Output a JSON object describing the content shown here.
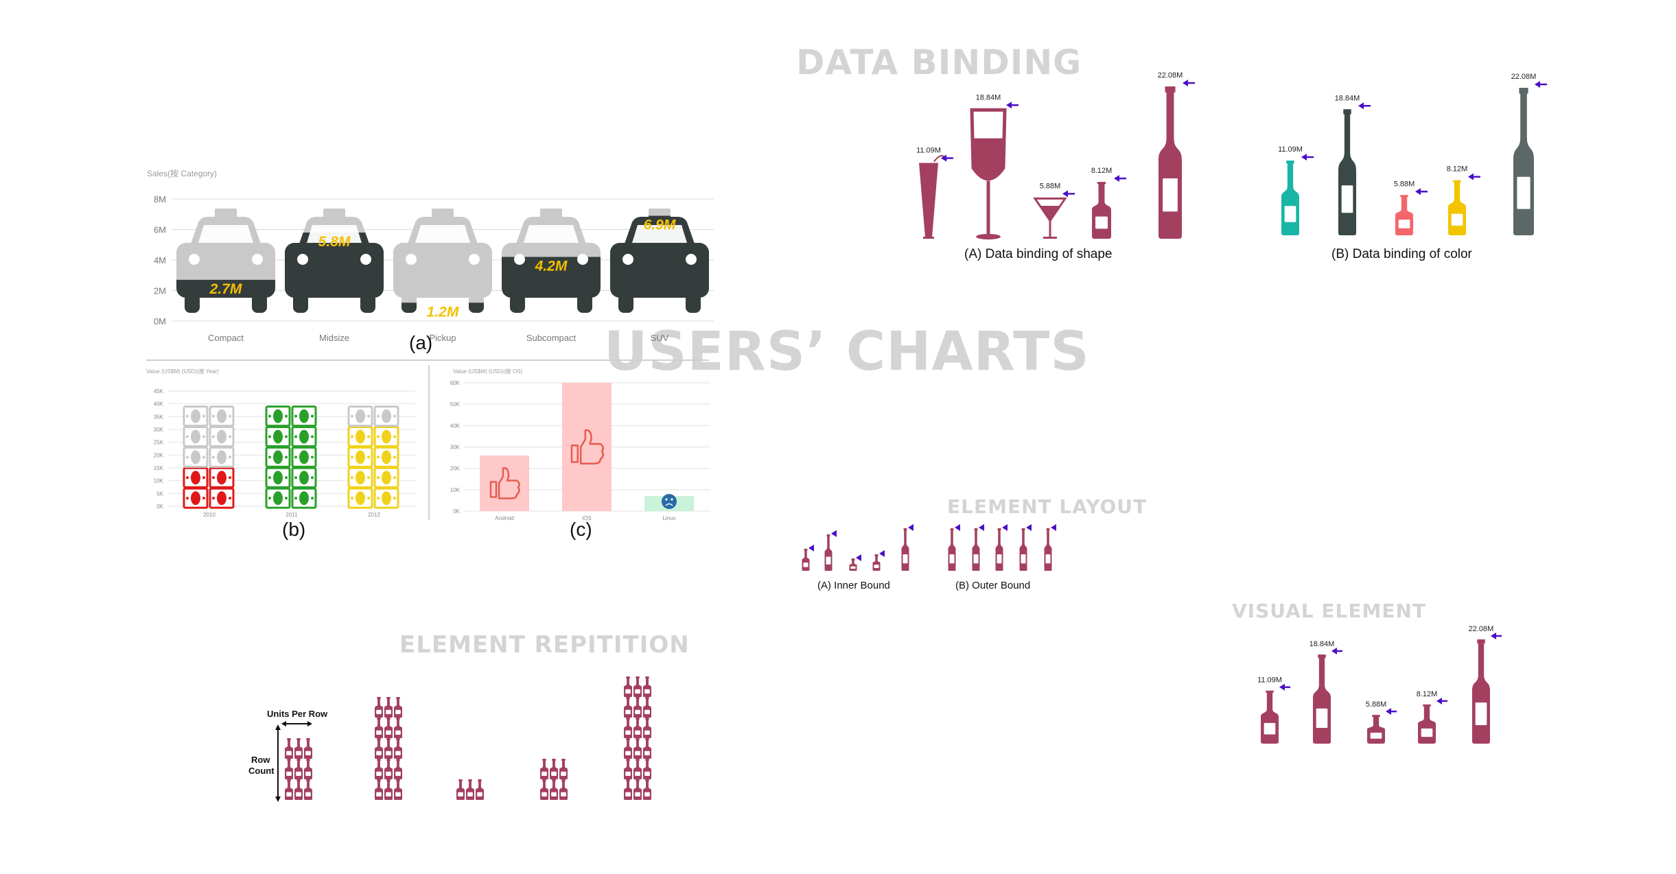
{
  "titles": {
    "data_binding": "DATA BINDING",
    "users_charts": "USERS’ CHARTS",
    "element_layout": "ELEMENT LAYOUT",
    "visual_element": "VISUAL ELEMENT",
    "element_repitition": "ELEMENT REPITITION"
  },
  "captions": {
    "a": "(a)",
    "b": "(b)",
    "c": "(c)",
    "shape": "(A) Data binding of shape",
    "color": "(B) Data binding of color",
    "inner": "(A) Inner Bound",
    "outer": "(B) Outer Bound",
    "units_per_row": "Units Per Row",
    "row_count_1": "Row",
    "row_count_2": "Count"
  },
  "colors": {
    "wine": "#a3405f",
    "arrow": "#4b0fc6",
    "car_dark": "#353c3c",
    "car_light": "#c9c9c9",
    "gold": "#f2c100",
    "like_fill": "#ffc9c9",
    "like_icon": "#e65b4f",
    "sad_fill": "#c8f2d9",
    "sad_icon": "#2a6aa8"
  },
  "icons": [
    "car-icon",
    "money-icon",
    "thumbs-up-icon",
    "sad-face-icon",
    "wine-bottle-icon",
    "wine-glass-icon",
    "cocktail-glass-icon",
    "arrow-left-icon"
  ],
  "chart_data": [
    {
      "id": "a",
      "type": "bar",
      "title": "Sales(按 Category)",
      "categories": [
        "Compact",
        "Midsize",
        "Pickup",
        "Subcompact",
        "SUV"
      ],
      "values": [
        2.7,
        5.8,
        1.2,
        4.2,
        6.9
      ],
      "value_labels": [
        "2.7M",
        "5.8M",
        "1.2M",
        "4.2M",
        "6.9M"
      ],
      "yticks": [
        "0M",
        "2M",
        "4M",
        "6M",
        "8M"
      ],
      "ylim": [
        0,
        8
      ],
      "grid": true
    },
    {
      "id": "b",
      "type": "bar",
      "title": "Value (US$M) (USD)(按 Year)",
      "categories": [
        "2010",
        "2011",
        "2012"
      ],
      "values": [
        20,
        40,
        30
      ],
      "yticks": [
        "0K",
        "5K",
        "10K",
        "15K",
        "20K",
        "25K",
        "30K",
        "35K",
        "40K",
        "45K"
      ],
      "ylim": [
        0,
        45
      ],
      "grid": true
    },
    {
      "id": "c",
      "type": "bar",
      "title": "Value (US$M) (USD)(按 OS)",
      "categories": [
        "Android",
        "iOS",
        "Linux"
      ],
      "values": [
        26,
        60,
        7
      ],
      "yticks": [
        "0K",
        "10K",
        "20K",
        "30K",
        "40K",
        "50K",
        "60K"
      ],
      "ylim": [
        0,
        60
      ],
      "grid": true
    },
    {
      "id": "data-binding-shape",
      "type": "bar",
      "values": [
        11.09,
        18.84,
        5.88,
        8.12,
        22.08
      ],
      "value_labels": [
        "11.09M",
        "18.84M",
        "5.88M",
        "8.12M",
        "22.08M"
      ]
    },
    {
      "id": "data-binding-color",
      "type": "bar",
      "values": [
        11.09,
        18.84,
        5.88,
        8.12,
        22.08
      ],
      "value_labels": [
        "11.09M",
        "18.84M",
        "5.88M",
        "8.12M",
        "22.08M"
      ],
      "colors": [
        "#1ab6a5",
        "#3a4848",
        "#f2666c",
        "#f2c500",
        "#5c6767"
      ]
    },
    {
      "id": "visual-element",
      "type": "bar",
      "values": [
        11.09,
        18.84,
        5.88,
        8.12,
        22.08
      ],
      "value_labels": [
        "11.09M",
        "18.84M",
        "5.88M",
        "8.12M",
        "22.08M"
      ]
    },
    {
      "id": "element-repitition",
      "type": "bar",
      "units_per_row": 3,
      "row_counts": [
        3,
        5,
        1,
        2,
        6
      ]
    }
  ]
}
